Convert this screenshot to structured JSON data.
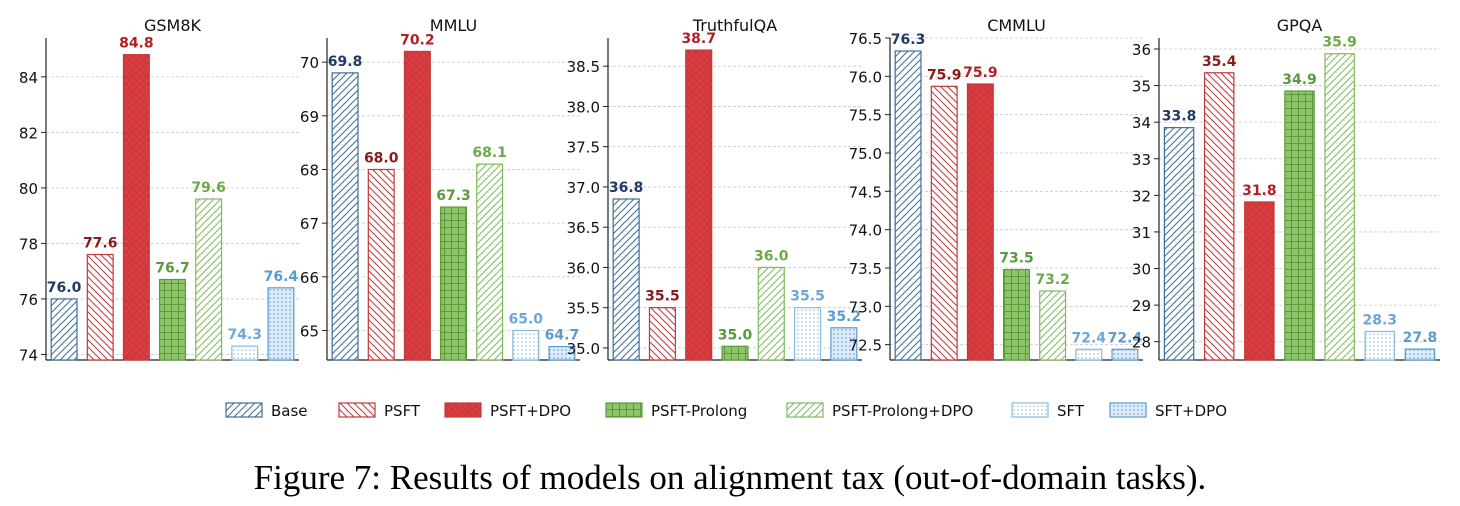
{
  "series": [
    {
      "name": "Base",
      "color": "#3e6c9a",
      "fill": "#ffffff",
      "pattern": "diag",
      "label_color": "#1f3a66"
    },
    {
      "name": "PSFT",
      "color": "#c0393b",
      "fill": "#ffffff",
      "pattern": "back",
      "label_color": "#8b1a1a"
    },
    {
      "name": "PSFT+DPO",
      "color": "#c0393b",
      "fill": "#e03b3f",
      "pattern": "cross",
      "label_color": "#b11f24"
    },
    {
      "name": "PSFT-Prolong",
      "color": "#5d9a3a",
      "fill": "#8cc56a",
      "pattern": "grid",
      "label_color": "#5a9a3d"
    },
    {
      "name": "PSFT-Prolong+DPO",
      "color": "#7fba5d",
      "fill": "#ffffff",
      "pattern": "diag",
      "label_color": "#6aaa48"
    },
    {
      "name": "SFT",
      "color": "#8ab9e0",
      "fill": "#ffffff",
      "pattern": "dots",
      "label_color": "#6ea6d6"
    },
    {
      "name": "SFT+DPO",
      "color": "#5a9bd0",
      "fill": "#dcebf7",
      "pattern": "dots",
      "label_color": "#5a9bd0"
    }
  ],
  "chart_data": [
    {
      "type": "bar",
      "title": "GSM8K",
      "ylim": [
        73.8,
        85.4
      ],
      "ticks": [
        74,
        76,
        78,
        80,
        82,
        84
      ],
      "series_idx": [
        0,
        1,
        2,
        3,
        4,
        5,
        6
      ],
      "values": [
        76.0,
        77.6,
        84.8,
        76.7,
        79.6,
        74.3,
        76.4
      ],
      "labels": [
        "76.0",
        "77.6",
        "84.8",
        "76.7",
        "79.6",
        "74.3",
        "76.4"
      ]
    },
    {
      "type": "bar",
      "title": "MMLU",
      "ylim": [
        64.45,
        70.45
      ],
      "ticks": [
        65,
        66,
        67,
        68,
        69,
        70
      ],
      "series_idx": [
        0,
        1,
        2,
        3,
        4,
        5,
        6
      ],
      "values": [
        69.8,
        68.0,
        70.2,
        67.3,
        68.1,
        65.0,
        64.7
      ],
      "labels": [
        "69.8",
        "68.0",
        "70.2",
        "67.3",
        "68.1",
        "65.0",
        "64.7"
      ]
    },
    {
      "type": "bar",
      "title": "TruthfulQA",
      "ylim": [
        34.85,
        38.85
      ],
      "ticks": [
        35.0,
        35.5,
        36.0,
        36.5,
        37.0,
        37.5,
        38.0,
        38.5
      ],
      "series_idx": [
        0,
        1,
        2,
        3,
        4,
        5,
        6
      ],
      "values": [
        36.85,
        35.5,
        38.7,
        35.02,
        36.0,
        35.5,
        35.25
      ],
      "labels": [
        "36.8",
        "35.5",
        "38.7",
        "35.0",
        "36.0",
        "35.5",
        "35.2"
      ]
    },
    {
      "type": "bar",
      "title": "CMMLU",
      "ylim": [
        72.3,
        76.5
      ],
      "ticks": [
        72.5,
        73.0,
        73.5,
        74.0,
        74.5,
        75.0,
        75.5,
        76.0,
        76.5
      ],
      "series_idx": [
        0,
        1,
        2,
        3,
        4,
        5,
        6
      ],
      "values": [
        76.33,
        75.87,
        75.9,
        73.48,
        73.2,
        72.44,
        72.44
      ],
      "labels": [
        "76.3",
        "75.9",
        "75.9",
        "73.5",
        "73.2",
        "72.4",
        "72.4"
      ]
    },
    {
      "type": "bar",
      "title": "GPQA",
      "ylim": [
        27.5,
        36.3
      ],
      "ticks": [
        28,
        29,
        30,
        31,
        32,
        33,
        34,
        35,
        36
      ],
      "series_idx": [
        0,
        1,
        2,
        3,
        4,
        5,
        6
      ],
      "values": [
        33.85,
        35.35,
        31.82,
        34.85,
        35.87,
        28.28,
        27.8
      ],
      "labels": [
        "33.8",
        "35.4",
        "31.8",
        "34.9",
        "35.9",
        "28.3",
        "27.8"
      ]
    }
  ],
  "caption": "Figure 7: Results of models on alignment tax (out-of-domain tasks)."
}
